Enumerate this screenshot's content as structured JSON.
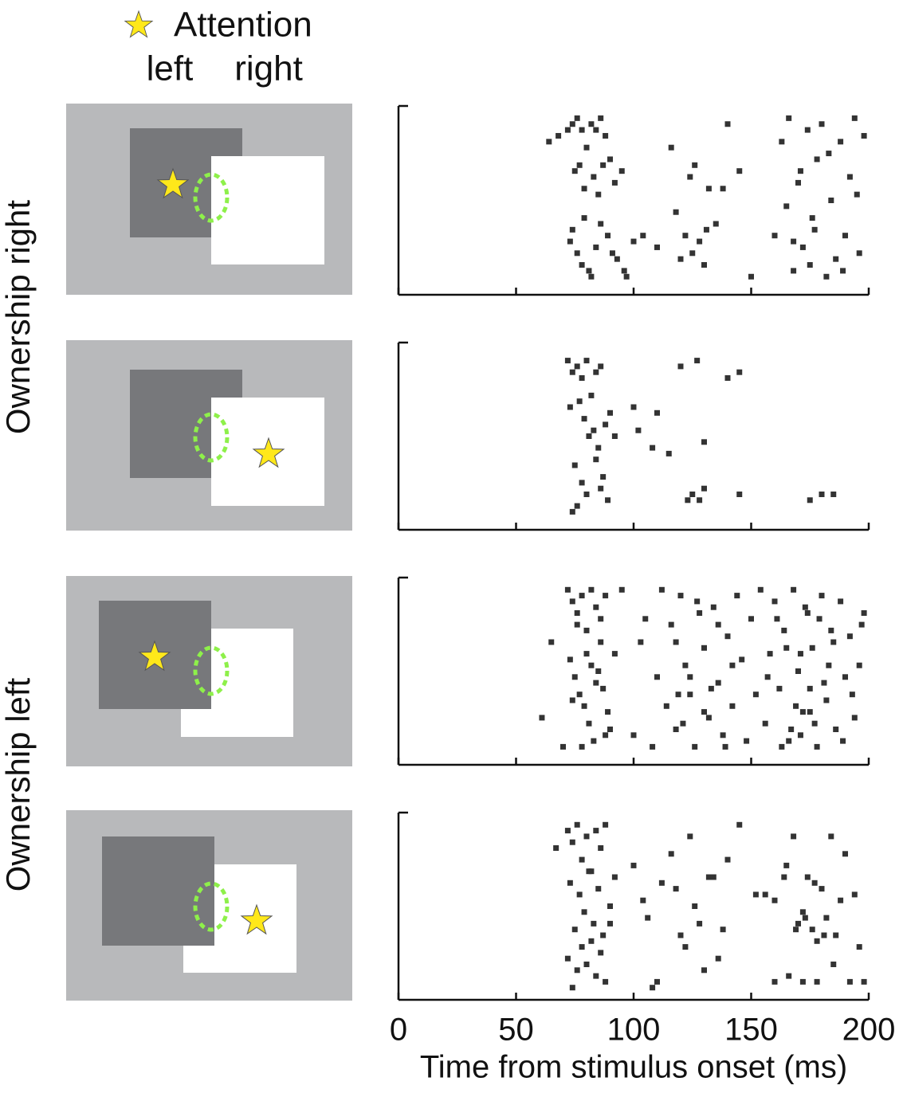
{
  "figure": {
    "legend": "Attention",
    "attention_left": "left",
    "attention_right": "right",
    "rows": [
      "Ownership right",
      "Ownership left"
    ]
  },
  "chart_data": [
    {
      "type": "scatter",
      "color": "#333333",
      "xlim": [
        0,
        200
      ],
      "xticks": [
        0,
        50,
        100,
        150,
        200
      ],
      "ylim": [
        0,
        30
      ],
      "x": [
        64,
        68,
        72,
        74,
        76,
        78,
        80,
        82,
        84,
        86,
        88,
        90,
        75,
        77,
        79,
        83,
        85,
        87,
        92,
        95,
        73,
        76,
        78,
        81,
        84,
        89,
        93,
        97,
        100,
        74,
        79,
        82,
        86,
        91,
        96,
        104,
        110,
        116,
        120,
        122,
        124,
        126,
        128,
        130,
        132,
        135,
        140,
        145,
        150,
        118,
        125,
        131,
        138,
        160,
        163,
        166,
        168,
        170,
        172,
        174,
        176,
        178,
        180,
        182,
        184,
        186,
        188,
        190,
        192,
        194,
        196,
        198,
        165,
        171,
        177,
        183,
        189,
        195,
        168,
        175
      ],
      "values": [
        25,
        26,
        27,
        28,
        29,
        27,
        24,
        28,
        27,
        29,
        26,
        22,
        20,
        21,
        17,
        19,
        16,
        21,
        18,
        20,
        8,
        6,
        4,
        3,
        7,
        9,
        5,
        2,
        8,
        10,
        12,
        2,
        11,
        6,
        3,
        9,
        7,
        24,
        5,
        9,
        19,
        21,
        8,
        4,
        17,
        11,
        28,
        20,
        2,
        13,
        6,
        10,
        17,
        9,
        25,
        29,
        3,
        18,
        7,
        27,
        12,
        22,
        28,
        2,
        15,
        5,
        25,
        9,
        19,
        29,
        6,
        26,
        14,
        20,
        10,
        23,
        3,
        16,
        8,
        4
      ]
    },
    {
      "type": "scatter",
      "color": "#333333",
      "xlim": [
        0,
        200
      ],
      "xticks": [
        0,
        50,
        100,
        150,
        200
      ],
      "ylim": [
        0,
        30
      ],
      "x": [
        72,
        74,
        76,
        78,
        80,
        82,
        84,
        86,
        73,
        77,
        79,
        81,
        83,
        85,
        88,
        90,
        92,
        75,
        78,
        84,
        87,
        89,
        100,
        110,
        115,
        120,
        127,
        130,
        140,
        145,
        76,
        80,
        125,
        130,
        145,
        175,
        180,
        185,
        123,
        128,
        74,
        86,
        102,
        108
      ],
      "values": [
        28,
        26,
        27,
        25,
        28,
        22,
        26,
        27,
        20,
        21,
        18,
        15,
        16,
        13,
        17,
        19,
        15,
        10,
        7,
        11,
        8,
        4,
        20,
        19,
        12,
        27,
        28,
        14,
        25,
        26,
        3,
        5,
        5,
        6,
        5,
        4,
        5,
        5,
        4,
        4,
        2,
        6,
        16,
        13
      ]
    },
    {
      "type": "scatter",
      "color": "#333333",
      "xlim": [
        0,
        200
      ],
      "xticks": [
        0,
        50,
        100,
        150,
        200
      ],
      "ylim": [
        0,
        30
      ],
      "x": [
        61,
        65,
        70,
        72,
        74,
        76,
        78,
        80,
        82,
        84,
        86,
        88,
        90,
        73,
        75,
        77,
        79,
        81,
        83,
        85,
        87,
        89,
        92,
        95,
        100,
        103,
        105,
        108,
        110,
        112,
        114,
        116,
        118,
        120,
        122,
        124,
        126,
        128,
        130,
        132,
        134,
        136,
        138,
        140,
        142,
        144,
        146,
        148,
        150,
        152,
        154,
        156,
        158,
        160,
        162,
        164,
        166,
        168,
        170,
        172,
        174,
        176,
        178,
        180,
        182,
        184,
        186,
        188,
        190,
        192,
        194,
        196,
        198,
        157,
        161,
        165,
        169,
        173,
        177,
        181,
        185,
        189,
        193,
        197,
        163,
        167,
        171,
        175,
        179,
        183,
        118,
        124,
        130,
        136,
        142,
        121,
        127,
        133,
        139,
        119,
        76,
        80,
        84,
        88,
        74,
        78,
        82,
        86,
        171,
        175
      ],
      "values": [
        7,
        20,
        2,
        29,
        27,
        25,
        28,
        22,
        29,
        26,
        20,
        28,
        5,
        17,
        14,
        11,
        9,
        6,
        3,
        15,
        12,
        8,
        18,
        29,
        4,
        20,
        24,
        2,
        14,
        29,
        9,
        23,
        5,
        28,
        16,
        11,
        2,
        25,
        19,
        7,
        26,
        13,
        4,
        21,
        9,
        28,
        17,
        3,
        24,
        11,
        29,
        6,
        18,
        27,
        12,
        22,
        3,
        29,
        15,
        8,
        25,
        19,
        2,
        28,
        10,
        22,
        5,
        27,
        14,
        21,
        7,
        16,
        25,
        14,
        24,
        19,
        9,
        26,
        6,
        13,
        20,
        3,
        11,
        23,
        2,
        5,
        18,
        12,
        24,
        16,
        20,
        14,
        8,
        23,
        16,
        6,
        27,
        12,
        2,
        11,
        23,
        18,
        13,
        4,
        10,
        2,
        16,
        24,
        4,
        8
      ]
    },
    {
      "type": "scatter",
      "color": "#333333",
      "xlim": [
        0,
        200
      ],
      "xticks": [
        0,
        50,
        100,
        150,
        200
      ],
      "ylim": [
        0,
        30
      ],
      "xlabel": "Time from stimulus onset (ms)",
      "x": [
        67,
        72,
        74,
        76,
        78,
        80,
        82,
        84,
        86,
        88,
        73,
        77,
        79,
        81,
        83,
        85,
        87,
        90,
        92,
        75,
        78,
        80,
        82,
        84,
        86,
        88,
        76,
        74,
        72,
        90,
        100,
        104,
        108,
        112,
        116,
        120,
        124,
        128,
        132,
        136,
        140,
        145,
        106,
        110,
        118,
        122,
        126,
        130,
        134,
        138,
        152,
        156,
        160,
        164,
        168,
        170,
        172,
        174,
        176,
        178,
        180,
        182,
        184,
        186,
        188,
        190,
        192,
        194,
        196,
        198,
        165,
        169,
        173,
        177,
        181,
        185,
        160,
        166,
        172,
        178
      ],
      "values": [
        25,
        28,
        26,
        29,
        23,
        27,
        21,
        28,
        25,
        29,
        19,
        17,
        14,
        21,
        12,
        18,
        10,
        15,
        20,
        11,
        8,
        5,
        9,
        3,
        7,
        2,
        4,
        1,
        6,
        12,
        22,
        16,
        1,
        19,
        24,
        10,
        27,
        12,
        20,
        6,
        23,
        29,
        13,
        2,
        18,
        8,
        15,
        4,
        20,
        11,
        17,
        17,
        16,
        20,
        27,
        12,
        14,
        20,
        11,
        9,
        18,
        13,
        27,
        10,
        16,
        24,
        2,
        17,
        8,
        2,
        22,
        11,
        13,
        19,
        10,
        5,
        2,
        3,
        2,
        2
      ]
    }
  ]
}
